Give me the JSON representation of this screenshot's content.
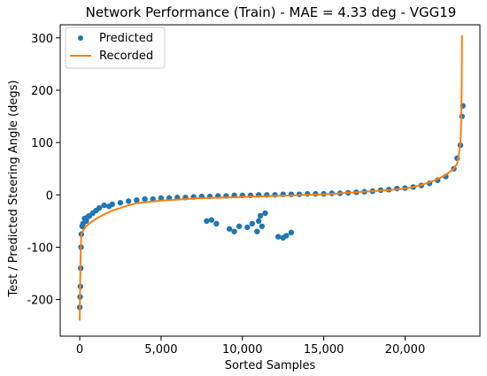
{
  "chart_data": {
    "type": "scatter",
    "title": "Network Performance (Train) - MAE = 4.33 deg - VGG19",
    "xlabel": "Sorted Samples",
    "ylabel": "Test / Predicted Steering Angle (degs)",
    "xlim": [
      -1200,
      24600
    ],
    "ylim": [
      -270,
      325
    ],
    "xticks": [
      0,
      5000,
      10000,
      15000,
      20000
    ],
    "xtick_labels": [
      "0",
      "5,000",
      "10,000",
      "15,000",
      "20,000"
    ],
    "yticks": [
      -200,
      -100,
      0,
      100,
      200,
      300
    ],
    "ytick_labels": [
      "-200",
      "-100",
      "0",
      "100",
      "200",
      "300"
    ],
    "legend_position": "top-left",
    "grid": false,
    "series": [
      {
        "name": "Predicted",
        "kind": "scatter",
        "color": "#1f77b4",
        "x": [
          0,
          20,
          40,
          60,
          80,
          100,
          150,
          200,
          300,
          400,
          500,
          600,
          800,
          1000,
          1200,
          1500,
          1800,
          2000,
          2500,
          3000,
          3500,
          4000,
          4500,
          5000,
          5500,
          6000,
          6500,
          7000,
          7500,
          8000,
          8500,
          9000,
          9500,
          10000,
          10500,
          11000,
          11500,
          12000,
          12500,
          13000,
          13500,
          14000,
          14500,
          15000,
          15500,
          16000,
          16500,
          17000,
          17500,
          18000,
          18500,
          19000,
          19500,
          20000,
          20500,
          21000,
          21500,
          22000,
          22500,
          23000,
          23200,
          23400,
          23500,
          23550,
          7800,
          8100,
          8400,
          9200,
          9500,
          9800,
          10300,
          10600,
          10900,
          11100,
          11400,
          12200,
          12500,
          12700,
          13000,
          11000,
          11200
        ],
        "y": [
          -215,
          -195,
          -175,
          -140,
          -100,
          -75,
          -60,
          -55,
          -45,
          -50,
          -42,
          -40,
          -35,
          -30,
          -25,
          -20,
          -22,
          -18,
          -15,
          -12,
          -10,
          -8,
          -8,
          -6,
          -6,
          -5,
          -5,
          -4,
          -3,
          -3,
          -2,
          -2,
          -1,
          -1,
          -1,
          0,
          0,
          0,
          1,
          1,
          1,
          2,
          2,
          2,
          3,
          3,
          4,
          5,
          6,
          7,
          9,
          10,
          12,
          13,
          15,
          18,
          22,
          28,
          35,
          50,
          70,
          95,
          150,
          170,
          -50,
          -48,
          -55,
          -65,
          -70,
          -60,
          -62,
          -55,
          -70,
          -40,
          -35,
          -80,
          -82,
          -78,
          -72,
          -50,
          -60
        ]
      },
      {
        "name": "Recorded",
        "kind": "line",
        "color": "#ff7f0e",
        "x": [
          0,
          30,
          60,
          100,
          200,
          400,
          700,
          1000,
          1500,
          2000,
          2500,
          3000,
          3500,
          4000,
          5000,
          6000,
          7000,
          8000,
          9000,
          10000,
          11000,
          12000,
          13000,
          14000,
          15000,
          16000,
          17000,
          18000,
          19000,
          20000,
          20500,
          21000,
          21500,
          22000,
          22500,
          23000,
          23200,
          23300,
          23400,
          23450,
          23480,
          23500
        ],
        "y": [
          -240,
          -160,
          -110,
          -75,
          -68,
          -60,
          -52,
          -46,
          -37,
          -30,
          -25,
          -20,
          -16,
          -14,
          -11,
          -9,
          -7,
          -6,
          -5,
          -4,
          -3,
          -2,
          -1,
          0,
          1,
          3,
          5,
          7,
          9,
          12,
          15,
          19,
          24,
          30,
          38,
          50,
          60,
          75,
          100,
          140,
          200,
          305
        ]
      }
    ]
  }
}
